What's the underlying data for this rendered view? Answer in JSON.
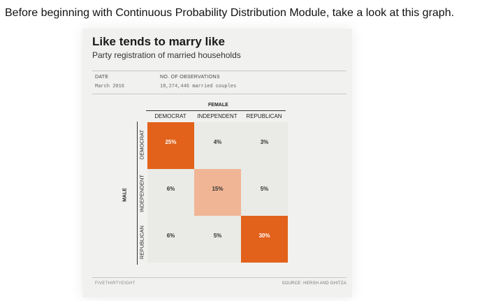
{
  "intro_text": "Before beginning with Continuous Probability Distribution Module, take a look at this graph.",
  "card": {
    "title": "Like tends to marry like",
    "subtitle": "Party registration of married households",
    "date_label": "DATE",
    "date_value": "March 2016",
    "obs_label": "NO. OF OBSERVATIONS",
    "obs_value": "18,274,446 married couples",
    "footer_logo": "FIVETHIRTYEIGHT",
    "source": "SOURCE: HERSH AND GHITZA"
  },
  "chart_data": {
    "type": "heatmap",
    "col_axis_title": "FEMALE",
    "row_axis_title": "MALE",
    "columns": [
      "DEMOCRAT",
      "INDEPENDENT",
      "REPUBLICAN"
    ],
    "rows": [
      "DEMOCRAT",
      "INDEPENDENT",
      "REPUBLICAN"
    ],
    "values": [
      [
        25,
        4,
        3
      ],
      [
        6,
        15,
        5
      ],
      [
        6,
        5,
        30
      ]
    ],
    "labels": [
      [
        "25%",
        "4%",
        "3%"
      ],
      [
        "6%",
        "15%",
        "5%"
      ],
      [
        "6%",
        "5%",
        "30%"
      ]
    ],
    "colors": {
      "high": "#e2621b",
      "mid": "#f0b595",
      "low": "#eaeae6",
      "high_text": "#ffffff",
      "low_text": "#333333"
    }
  }
}
